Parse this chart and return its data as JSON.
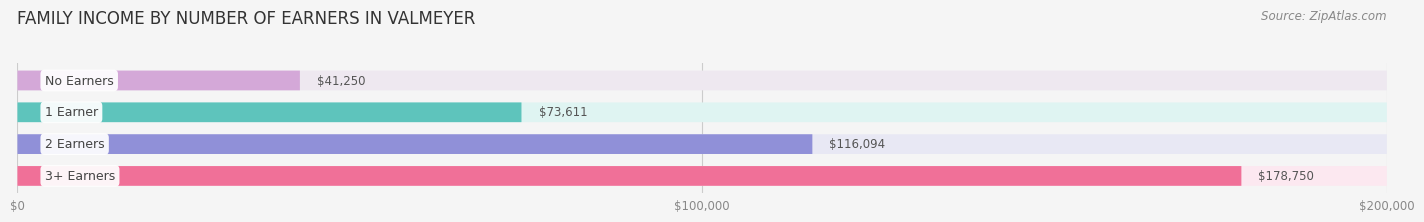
{
  "title": "FAMILY INCOME BY NUMBER OF EARNERS IN VALMEYER",
  "source": "Source: ZipAtlas.com",
  "categories": [
    "No Earners",
    "1 Earner",
    "2 Earners",
    "3+ Earners"
  ],
  "values": [
    41250,
    73611,
    116094,
    178750
  ],
  "bar_colors": [
    "#d4a8d8",
    "#5ec4bc",
    "#9090d8",
    "#f07098"
  ],
  "bar_bg_colors": [
    "#eee8f0",
    "#dff4f2",
    "#e8e8f4",
    "#fce8f0"
  ],
  "label_values": [
    "$41,250",
    "$73,611",
    "$116,094",
    "$178,750"
  ],
  "xlim": [
    0,
    200000
  ],
  "xticks": [
    0,
    100000,
    200000
  ],
  "xtick_labels": [
    "$0",
    "$100,000",
    "$200,000"
  ],
  "background_color": "#f5f5f5",
  "title_fontsize": 12,
  "source_fontsize": 8.5
}
